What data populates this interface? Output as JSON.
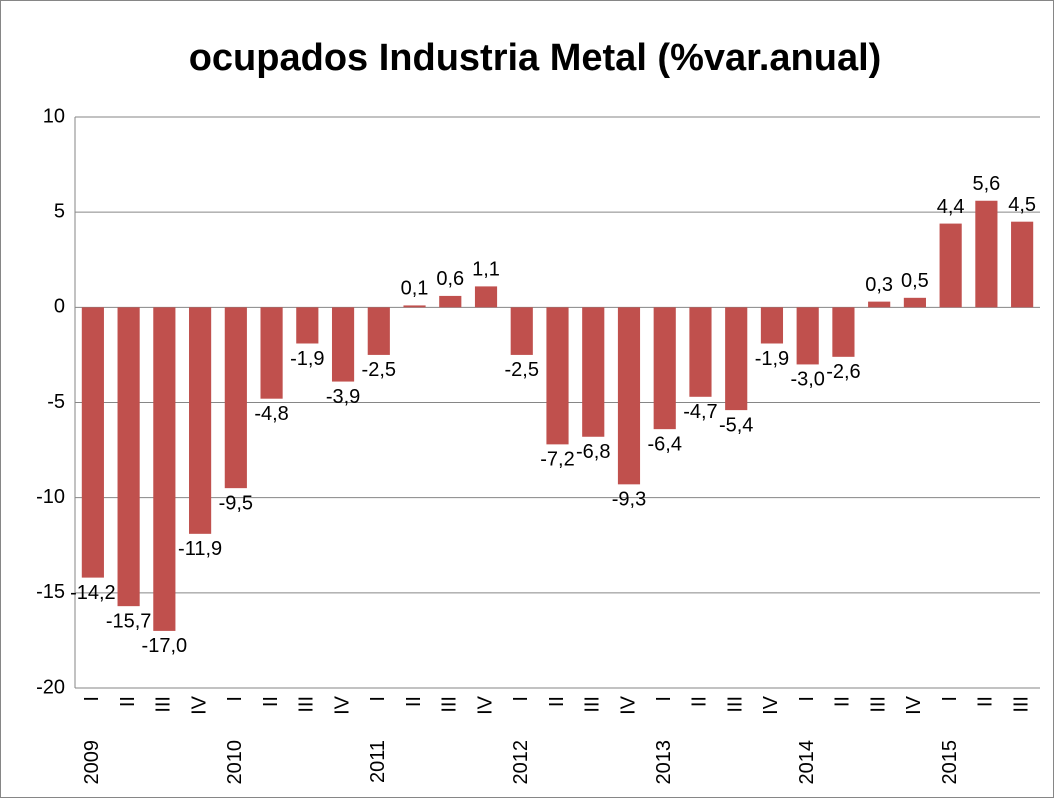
{
  "chart_data": {
    "type": "bar",
    "title": "ocupados Industria Metal (%var.anual)",
    "groups": [
      {
        "name": "2009",
        "categories": [
          "I",
          "II",
          "III",
          "IV"
        ]
      },
      {
        "name": "2010",
        "categories": [
          "I",
          "II",
          "III",
          "IV"
        ]
      },
      {
        "name": "2011",
        "categories": [
          "I",
          "II",
          "III",
          "IV"
        ]
      },
      {
        "name": "2012",
        "categories": [
          "I",
          "II",
          "III",
          "IV"
        ]
      },
      {
        "name": "2013",
        "categories": [
          "I",
          "II",
          "III",
          "IV"
        ]
      },
      {
        "name": "2014",
        "categories": [
          "I",
          "II",
          "III",
          "IV"
        ]
      },
      {
        "name": "2015",
        "categories": [
          "I",
          "II",
          "III"
        ]
      }
    ],
    "values": [
      -14.2,
      -15.7,
      -17.0,
      -11.9,
      -9.5,
      -4.8,
      -1.9,
      -3.9,
      -2.5,
      0.1,
      0.6,
      1.1,
      -2.5,
      -7.2,
      -6.8,
      -9.3,
      -6.4,
      -4.7,
      -5.4,
      -1.9,
      -3.0,
      -2.6,
      0.3,
      0.5,
      4.4,
      5.6,
      4.5
    ],
    "value_labels": [
      "-14,2",
      "-15,7",
      "-17,0",
      "-11,9",
      "-9,5",
      "-4,8",
      "-1,9",
      "-3,9",
      "-2,5",
      "0,1",
      "0,6",
      "1,1",
      "-2,5",
      "-7,2",
      "-6,8",
      "-9,3",
      "-6,4",
      "-4,7",
      "-5,4",
      "-1,9",
      "-3,0",
      "-2,6",
      "0,3",
      "0,5",
      "4,4",
      "5,6",
      "4,5"
    ],
    "color": "#c0504d",
    "ylim": [
      -20,
      10
    ],
    "yticks": [
      -20,
      -15,
      -10,
      -5,
      0,
      5,
      10
    ],
    "grid": true
  }
}
